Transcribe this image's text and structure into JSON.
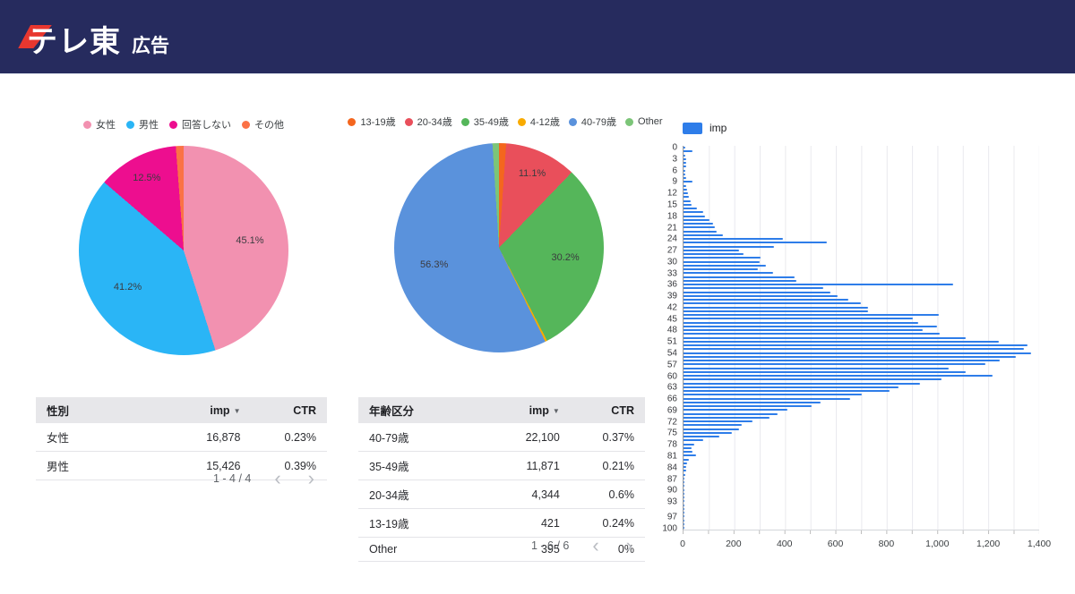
{
  "header": {
    "logo_main": "テレ東",
    "logo_sub": "広告"
  },
  "chart_data": [
    {
      "type": "pie",
      "name": "gender-distribution",
      "legend_position": "top",
      "slices": [
        {
          "label": "女性",
          "pct": 45.1,
          "color": "#F291B0"
        },
        {
          "label": "男性",
          "pct": 41.2,
          "color": "#2AB5F6"
        },
        {
          "label": "回答しない",
          "pct": 12.5,
          "color": "#ED0E8F"
        },
        {
          "label": "その他",
          "pct": 1.2,
          "color": "#FB7246"
        }
      ]
    },
    {
      "type": "pie",
      "name": "age-group-distribution",
      "legend_position": "top",
      "slices": [
        {
          "label": "13-19歳",
          "pct": 1.1,
          "color": "#F4661E"
        },
        {
          "label": "20-34歳",
          "pct": 11.1,
          "color": "#E94F5B"
        },
        {
          "label": "35-49歳",
          "pct": 30.2,
          "color": "#55B65A"
        },
        {
          "label": "4-12歳",
          "pct": 0.3,
          "color": "#F9AB00"
        },
        {
          "label": "40-79歳",
          "pct": 56.3,
          "color": "#5A92DC"
        },
        {
          "label": "Other",
          "pct": 1.0,
          "color": "#7CC578"
        }
      ]
    },
    {
      "type": "bar",
      "name": "imp-by-age",
      "orientation": "horizontal",
      "series_name": "imp",
      "bar_color": "#2E7DE9",
      "age_min": 0,
      "age_max": 100,
      "xlim": [
        0,
        1400
      ],
      "x_tick_labels": [
        "0",
        "200",
        "400",
        "600",
        "800",
        "1,000",
        "1,200",
        "1,400"
      ],
      "y_tick_labels": [
        0,
        3,
        6,
        9,
        12,
        15,
        18,
        21,
        24,
        27,
        30,
        33,
        36,
        39,
        42,
        45,
        48,
        51,
        54,
        57,
        60,
        63,
        66,
        69,
        72,
        75,
        78,
        81,
        84,
        87,
        90,
        93,
        97,
        100
      ],
      "values": [
        6,
        35,
        8,
        12,
        12,
        9,
        6,
        8,
        12,
        35,
        9,
        14,
        18,
        21,
        27,
        32,
        53,
        77,
        83,
        104,
        118,
        124,
        130,
        154,
        391,
        563,
        356,
        217,
        237,
        302,
        300,
        324,
        294,
        354,
        437,
        443,
        1061,
        549,
        578,
        608,
        649,
        697,
        726,
        726,
        1005,
        902,
        924,
        999,
        940,
        1010,
        1110,
        1240,
        1355,
        1340,
        1370,
        1310,
        1245,
        1190,
        1045,
        1110,
        1215,
        1015,
        930,
        845,
        810,
        700,
        655,
        540,
        505,
        410,
        370,
        340,
        272,
        228,
        220,
        192,
        140,
        78,
        42,
        30,
        35,
        48,
        22,
        15,
        12,
        10,
        8,
        5,
        4,
        3,
        3,
        2,
        2,
        2,
        1,
        1,
        1,
        1,
        1,
        1,
        2
      ],
      "grid": true,
      "legend_position": "top-left"
    }
  ],
  "tables": {
    "sort_icon": "▼",
    "prev_icon": "‹",
    "next_icon": "›",
    "gender": {
      "columns": [
        "性別",
        "imp",
        "CTR"
      ],
      "rows": [
        {
          "label": "女性",
          "imp": "16,878",
          "ctr": "0.23%"
        },
        {
          "label": "男性",
          "imp": "15,426",
          "ctr": "0.39%"
        }
      ],
      "pagination": "1 - 4 / 4"
    },
    "age": {
      "columns": [
        "年齢区分",
        "imp",
        "CTR"
      ],
      "rows": [
        {
          "label": "40-79歳",
          "imp": "22,100",
          "ctr": "0.37%"
        },
        {
          "label": "35-49歳",
          "imp": "11,871",
          "ctr": "0.21%"
        },
        {
          "label": "20-34歳",
          "imp": "4,344",
          "ctr": "0.6%"
        },
        {
          "label": "13-19歳",
          "imp": "421",
          "ctr": "0.24%"
        },
        {
          "label": "Other",
          "imp": "395",
          "ctr": "0%"
        }
      ],
      "pagination": "1 - 6 / 6"
    }
  }
}
